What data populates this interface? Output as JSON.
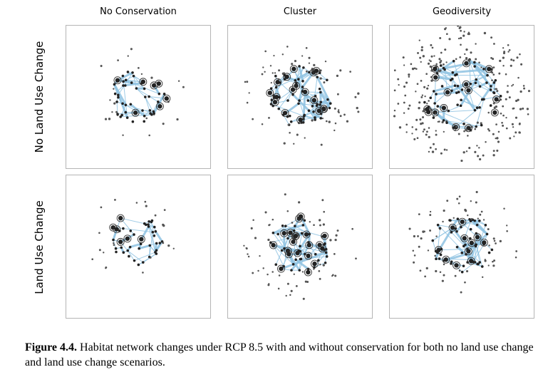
{
  "columns": [
    "No Conservation",
    "Cluster",
    "Geodiversity"
  ],
  "rows": [
    "No Land Use Change",
    "Land Use Change"
  ],
  "caption": {
    "label": "Figure 4.4.",
    "text": "Habitat network changes under RCP 8.5 with and without conservation for both no land use change and land use change scenarios."
  },
  "colors": {
    "edge": "#8fc3e2",
    "node": "#222222",
    "border": "#b5b5b5"
  }
}
